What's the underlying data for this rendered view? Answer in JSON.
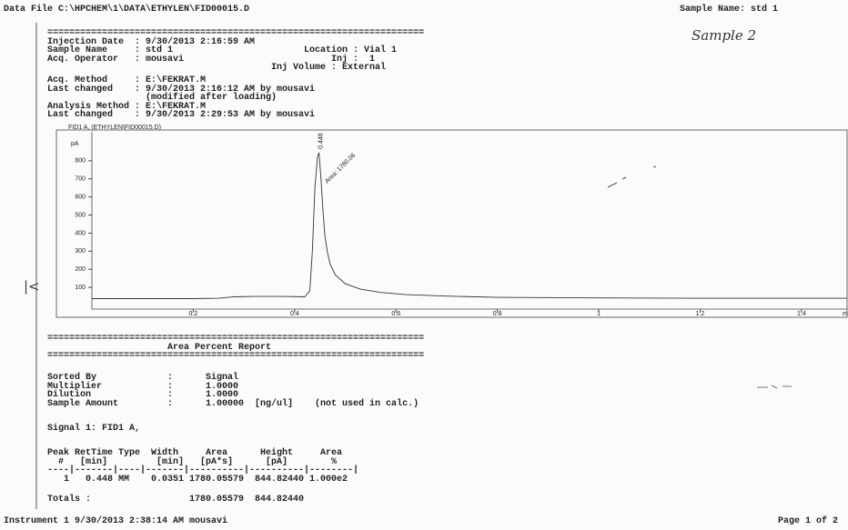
{
  "header": {
    "data_file": "Data File C:\\HPCHEM\\1\\DATA\\ETHYLEN\\FID00015.D",
    "sample_name": "Sample Name: std 1",
    "handwritten_note": "Sample 2",
    "margin_mark": "|<"
  },
  "info_block": [
    "=====================================================================",
    "Injection Date  : 9/30/2013 2:16:59 AM",
    "Sample Name     : std 1                        Location : Vial 1",
    "Acq. Operator   : mousavi                           Inj :  1",
    "                                         Inj Volume : External"
  ],
  "method_block": [
    "Acq. Method     : E:\\FEKRAT.M",
    "Last changed    : 9/30/2013 2:16:12 AM by mousavi",
    "                  (modified after loading)",
    "Analysis Method : E:\\FEKRAT.M",
    "Last changed    : 9/30/2013 2:29:53 AM by mousavi"
  ],
  "chart_data": {
    "type": "line",
    "title": "FID1 A, (ETHYLEN\\FID00015.D)",
    "y_label": "pA",
    "x_label": "min",
    "x": [
      0,
      0.1,
      0.2,
      0.25,
      0.28,
      0.32,
      0.38,
      0.42,
      0.43,
      0.435,
      0.44,
      0.445,
      0.448,
      0.452,
      0.456,
      0.46,
      0.465,
      0.47,
      0.48,
      0.5,
      0.53,
      0.57,
      0.62,
      0.7,
      0.8,
      1.0,
      1.2,
      1.49
    ],
    "series": [
      {
        "name": "FID1 A",
        "color": "#333333",
        "values": [
          38,
          38,
          38,
          40,
          48,
          50,
          50,
          48,
          80,
          300,
          650,
          820,
          845,
          700,
          520,
          380,
          290,
          230,
          170,
          120,
          90,
          72,
          60,
          52,
          45,
          42,
          40,
          40
        ]
      }
    ],
    "annotations": [
      {
        "text": "0.448",
        "x": 0.448,
        "y": 845
      },
      {
        "text": "Area: 1780.06",
        "x": 0.455,
        "y": 700
      }
    ],
    "xlim": [
      0,
      1.49
    ],
    "ylim": [
      -20,
      960
    ],
    "xticks": [
      0.2,
      0.4,
      0.6,
      0.8,
      1,
      1.2,
      1.4
    ],
    "yticks": [
      100,
      200,
      300,
      400,
      500,
      600,
      700,
      800
    ]
  },
  "report": {
    "title_block": [
      "=====================================================================",
      "                      Area Percent Report",
      "====================================================================="
    ],
    "settings": [
      "Sorted By             :      Signal",
      "Multiplier            :      1.0000",
      "Dilution              :      1.0000",
      "Sample Amount         :      1.00000  [ng/ul]    (not used in calc.)"
    ],
    "signal": "Signal 1: FID1 A,",
    "table": [
      "Peak RetTime Type  Width     Area      Height     Area",
      "  #   [min]         [min]   [pA*s]      [pA]        %",
      "----|-------|----|-------|----------|----------|--------|",
      "   1   0.448 MM    0.0351 1780.05579  844.82440 1.000e2"
    ],
    "totals": "Totals :                  1780.05579  844.82440"
  },
  "footer": {
    "instrument": "Instrument 1 9/30/2013 2:38:14 AM mousavi",
    "page": "Page 1 of 2"
  }
}
